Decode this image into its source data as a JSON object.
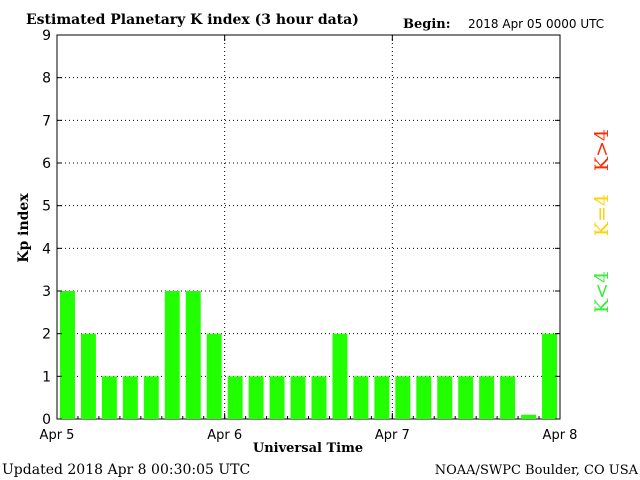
{
  "header": {
    "title": "Estimated Planetary K index (3 hour data)",
    "begin_label": "Begin:",
    "begin_value": "2018 Apr 05 0000 UTC"
  },
  "footer": {
    "updated": "Updated 2018 Apr  8 00:30:05 UTC",
    "source": "NOAA/SWPC Boulder, CO USA"
  },
  "legend": {
    "high": "K>4",
    "equal": "K=4",
    "low": "K<4",
    "colors": {
      "high": "#ff2a00",
      "equal": "#ffd200",
      "low": "#33ee33"
    }
  },
  "chart_data": {
    "type": "bar",
    "title": "Estimated Planetary K index (3 hour data)",
    "xlabel": "Universal Time",
    "ylabel": "Kp index",
    "ylim": [
      0,
      9
    ],
    "yticks": [
      "0",
      "1",
      "2",
      "3",
      "4",
      "5",
      "6",
      "7",
      "8",
      "9"
    ],
    "xticks": [
      "Apr 5",
      "Apr 6",
      "Apr 7",
      "Apr 8"
    ],
    "values": [
      3,
      2,
      1,
      1,
      1,
      3,
      3,
      2,
      1,
      1,
      1,
      1,
      1,
      2,
      1,
      1,
      1,
      1,
      1,
      1,
      1,
      1,
      0.1,
      2
    ],
    "bar_color": "#22ff00",
    "grid": "dotted"
  }
}
